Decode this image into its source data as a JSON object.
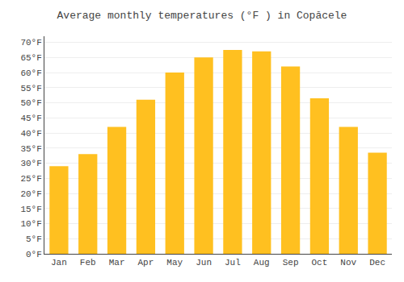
{
  "chart_data": {
    "type": "bar",
    "title": "Average monthly temperatures (°F ) in Copăcele",
    "categories": [
      "Jan",
      "Feb",
      "Mar",
      "Apr",
      "May",
      "Jun",
      "Jul",
      "Aug",
      "Sep",
      "Oct",
      "Nov",
      "Dec"
    ],
    "values": [
      29,
      33,
      42,
      51,
      60,
      65,
      67.5,
      67,
      62,
      51.5,
      42,
      33.5
    ],
    "color": "#FFC020",
    "ylim": [
      0,
      72
    ],
    "yticks": [
      {
        "value": 0,
        "label": "0°F"
      },
      {
        "value": 5,
        "label": "5°F"
      },
      {
        "value": 10,
        "label": "10°F"
      },
      {
        "value": 15,
        "label": "15°F"
      },
      {
        "value": 20,
        "label": "20°F"
      },
      {
        "value": 25,
        "label": "25°F"
      },
      {
        "value": 30,
        "label": "30°F"
      },
      {
        "value": 35,
        "label": "35°F"
      },
      {
        "value": 40,
        "label": "40°F"
      },
      {
        "value": 45,
        "label": "45°F"
      },
      {
        "value": 50,
        "label": "50°F"
      },
      {
        "value": 55,
        "label": "55°F"
      },
      {
        "value": 60,
        "label": "60°F"
      },
      {
        "value": 65,
        "label": "65°F"
      },
      {
        "value": 70,
        "label": "70°F"
      }
    ],
    "grid": true
  }
}
